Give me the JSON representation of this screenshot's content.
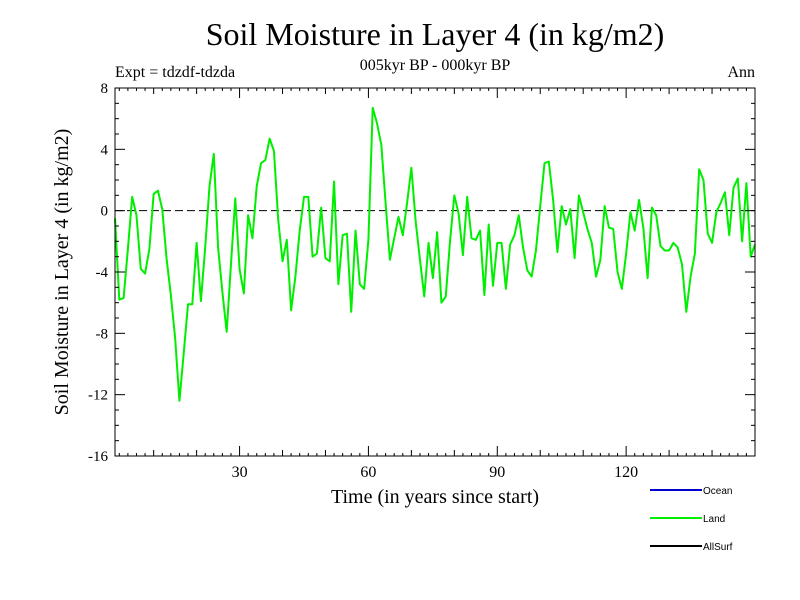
{
  "chart_data": {
    "type": "line",
    "title": "Soil Moisture in Layer 4 (in kg/m2)",
    "subtitle": "005kyr BP - 000kyr BP",
    "experiment_label": "Expt = tdzdf-tdzda",
    "period_label": "Ann",
    "xlabel": "Time (in years since start)",
    "ylabel": "Soil Moisture in Layer 4 (in kg/m2)",
    "xlim": [
      1,
      150
    ],
    "ylim": [
      -16,
      8
    ],
    "x_ticks": [
      30,
      60,
      90,
      120
    ],
    "x_tick_labels": [
      "30",
      "60",
      "90",
      "120"
    ],
    "y_ticks": [
      8,
      4,
      0,
      -4,
      -8,
      -12,
      -16
    ],
    "y_tick_labels": [
      "8",
      "4",
      "0",
      "-4",
      "-8",
      "-12",
      "-16"
    ],
    "zero_line": true,
    "legend_position": "bottom-right",
    "series": [
      {
        "name": "Ocean",
        "color": "#0000cc",
        "values": []
      },
      {
        "name": "Land",
        "color": "#00ee00",
        "x_start": 1,
        "x_step": 1,
        "values": [
          -0.5,
          -5.8,
          -5.7,
          -2.5,
          0.9,
          -0.3,
          -3.8,
          -4.1,
          -2.5,
          1.1,
          1.3,
          0.1,
          -3.1,
          -5.5,
          -8.3,
          -12.4,
          -9.3,
          -6.1,
          -6.1,
          -2.1,
          -5.9,
          -2.4,
          1.6,
          3.7,
          -2.4,
          -5.3,
          -7.9,
          -3.5,
          0.8,
          -3.8,
          -5.4,
          -0.3,
          -1.8,
          1.6,
          3.1,
          3.3,
          4.7,
          3.9,
          -0.6,
          -3.3,
          -1.9,
          -6.5,
          -4.3,
          -1.3,
          0.9,
          0.9,
          -3.0,
          -2.8,
          0.2,
          -3.1,
          -3.3,
          1.9,
          -4.8,
          -1.6,
          -1.5,
          -6.6,
          -1.3,
          -4.8,
          -5.1,
          -1.9,
          6.7,
          5.7,
          4.3,
          0.5,
          -3.2,
          -1.8,
          -0.4,
          -1.6,
          0.5,
          2.8,
          -0.7,
          -3.2,
          -5.6,
          -2.1,
          -4.4,
          -1.4,
          -6.0,
          -5.6,
          -2.0,
          1.0,
          -0.2,
          -2.9,
          0.9,
          -1.8,
          -1.9,
          -1.3,
          -5.5,
          -0.9,
          -4.9,
          -2.1,
          -2.1,
          -5.1,
          -2.2,
          -1.6,
          -0.3,
          -2.4,
          -3.9,
          -4.3,
          -2.6,
          0.3,
          3.1,
          3.2,
          0.7,
          -2.7,
          0.3,
          -0.9,
          0.1,
          -3.1,
          1.0,
          -0.1,
          -1.2,
          -2.1,
          -4.3,
          -3.2,
          0.3,
          -1.1,
          -1.2,
          -4.0,
          -5.1,
          -2.8,
          -0.1,
          -1.3,
          0.7,
          -1.1,
          -4.4,
          0.2,
          -0.3,
          -2.3,
          -2.6,
          -2.6,
          -2.1,
          -2.4,
          -3.5,
          -6.6,
          -4.3,
          -2.8,
          2.7,
          2.0,
          -1.5,
          -2.1,
          -0.1,
          0.5,
          1.2,
          -1.6,
          1.5,
          2.1,
          -2.0,
          1.8,
          -3.0,
          -2.2
        ]
      },
      {
        "name": "AllSurf",
        "color": "#000000",
        "values": []
      }
    ]
  }
}
